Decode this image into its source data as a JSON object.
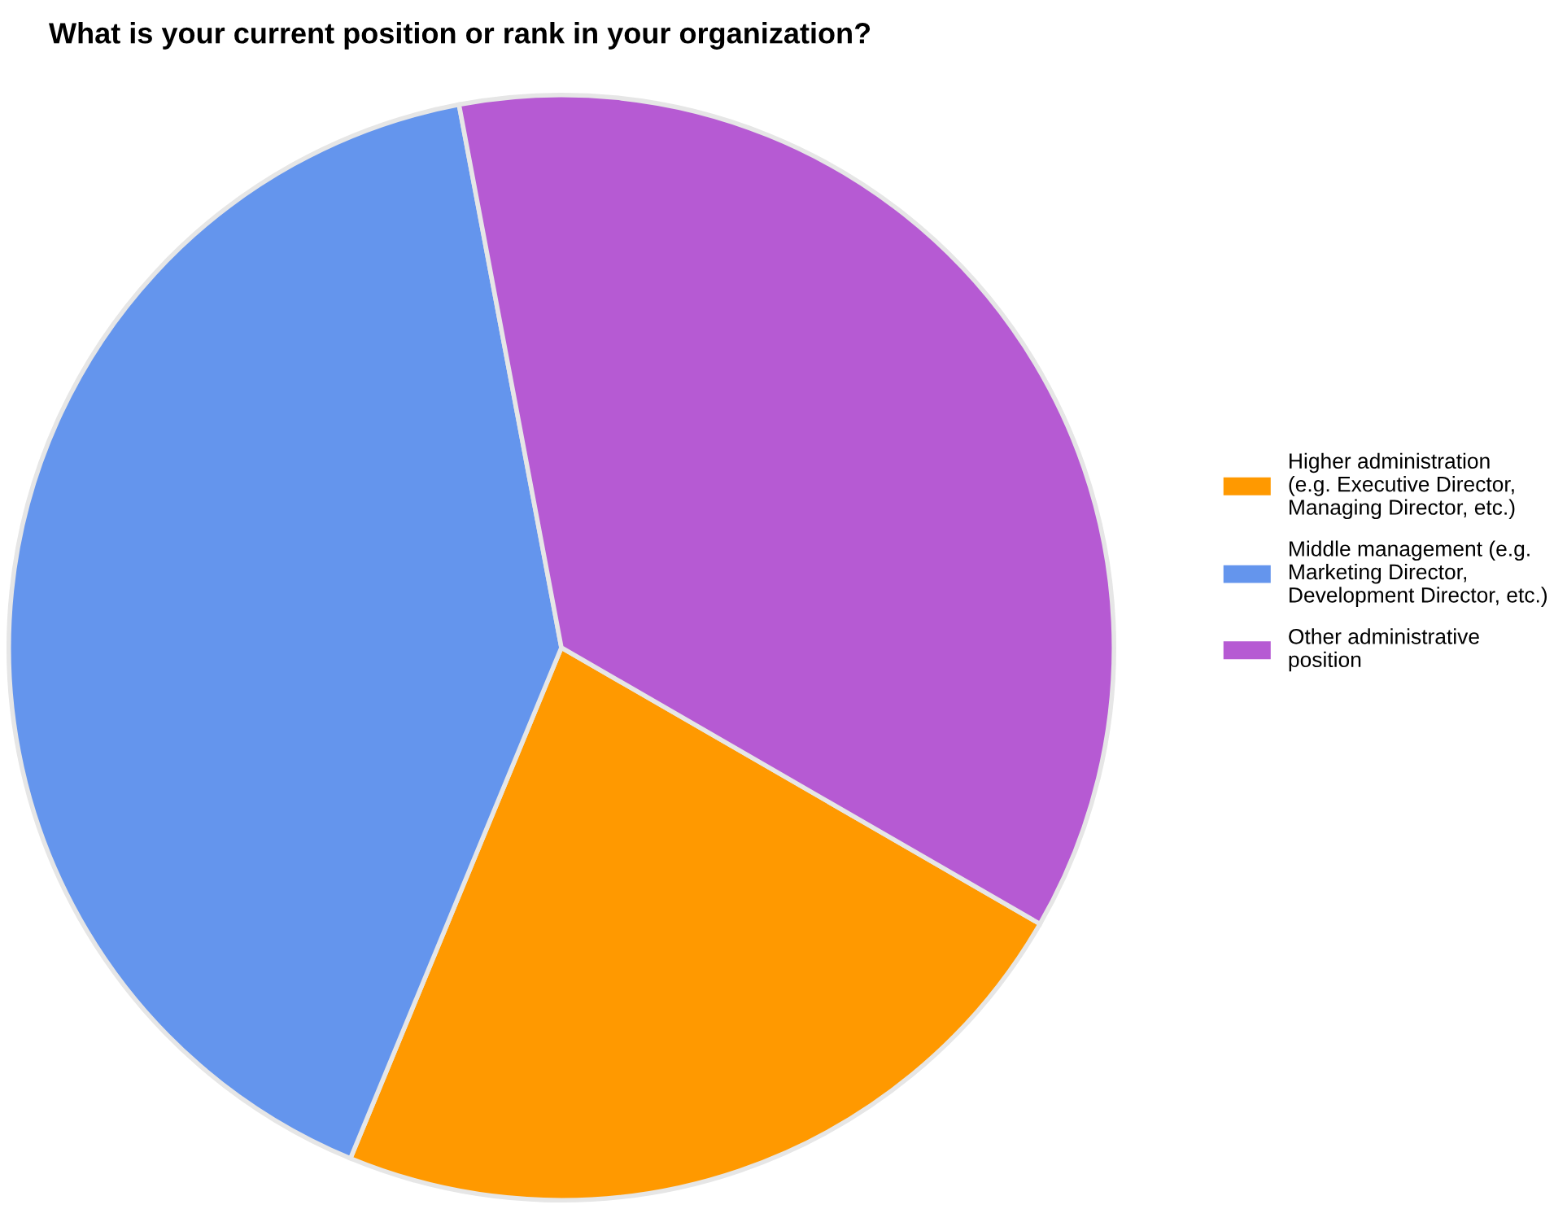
{
  "chart_data": {
    "type": "pie",
    "title": "What is your current position or rank in your organization?",
    "categories": [
      "Higher administration\n(e.g. Executive Director,\nManaging Director, etc.)",
      "Middle management (e.g.\nMarketing Director,\nDevelopment Director, etc.)",
      "Other administrative\nposition"
    ],
    "values": [
      22.9,
      40.8,
      36.3
    ],
    "colors": [
      "#ff9900",
      "#6495ed",
      "#b65ad3"
    ],
    "legend": "right"
  }
}
